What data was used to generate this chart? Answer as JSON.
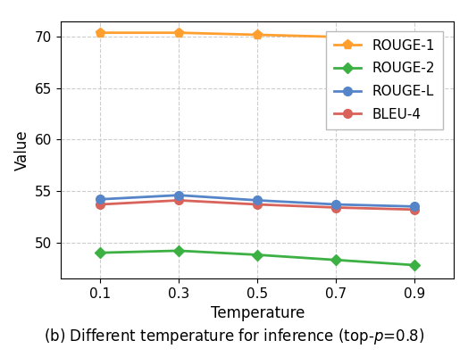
{
  "x": [
    0.1,
    0.3,
    0.5,
    0.7,
    0.9
  ],
  "rouge1": [
    70.4,
    70.4,
    70.2,
    70.0,
    69.7
  ],
  "rouge2": [
    49.0,
    49.2,
    48.8,
    48.3,
    47.8
  ],
  "rougel": [
    54.2,
    54.6,
    54.1,
    53.7,
    53.5
  ],
  "bleu4": [
    53.7,
    54.1,
    53.7,
    53.4,
    53.2
  ],
  "colors": {
    "rouge1": "#FF9F2F",
    "rouge2": "#3CB043",
    "rougel": "#5585C8",
    "bleu4": "#D9625A"
  },
  "xlabel": "Temperature",
  "ylabel": "Value",
  "caption": "(b) Different temperature for inference (top-$p$=0.8)",
  "ylim": [
    46.5,
    71.5
  ],
  "yticks": [
    50,
    55,
    60,
    65,
    70
  ],
  "legend_labels": [
    "ROUGE-1",
    "ROUGE-2",
    "ROUGE-L",
    "BLEU-4"
  ],
  "axis_fontsize": 12,
  "tick_fontsize": 11,
  "legend_fontsize": 11,
  "caption_fontsize": 12
}
